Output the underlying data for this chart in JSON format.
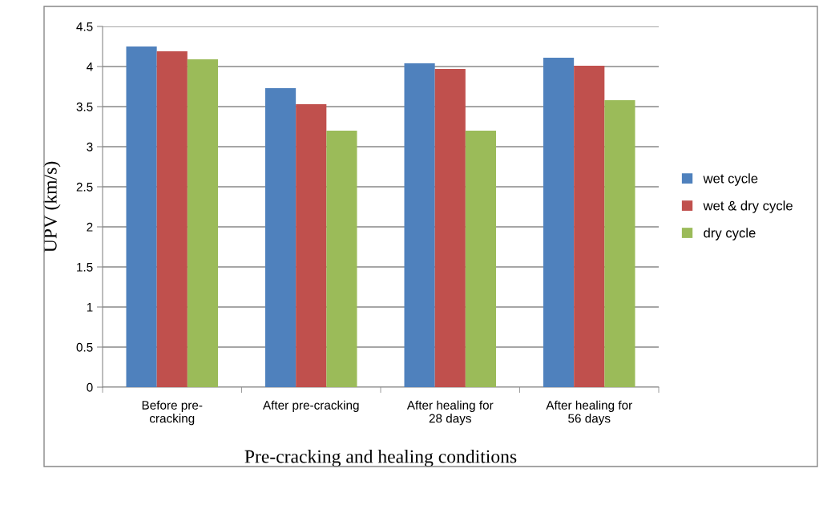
{
  "chart_data": {
    "type": "bar",
    "xlabel": "Pre-cracking and healing conditions",
    "ylabel": "UPV (km/s)",
    "categories": [
      "Before pre-\ncracking",
      "After pre-cracking",
      "After healing for\n28 days",
      "After healing for\n56 days"
    ],
    "series": [
      {
        "name": "wet cycle",
        "color": "#4f81bd",
        "values": [
          4.25,
          3.73,
          4.04,
          4.11
        ]
      },
      {
        "name": "wet & dry cycle",
        "color": "#c0504d",
        "values": [
          4.19,
          3.53,
          3.97,
          4.01
        ]
      },
      {
        "name": "dry cycle",
        "color": "#9bbb59",
        "values": [
          4.09,
          3.2,
          3.2,
          3.58
        ]
      }
    ],
    "ylim": [
      0,
      4.5
    ],
    "yticks": [
      0,
      0.5,
      1,
      1.5,
      2,
      2.5,
      3,
      3.5,
      4,
      4.5
    ],
    "grid": "y",
    "legend": "right"
  }
}
